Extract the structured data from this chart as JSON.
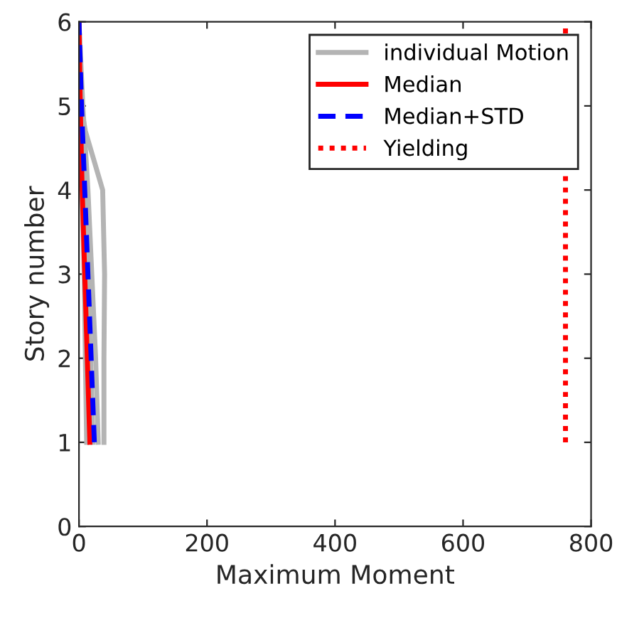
{
  "chart_data": {
    "type": "line",
    "xlabel": "Maximum Moment",
    "ylabel": "Story number",
    "xlim": [
      0,
      800
    ],
    "ylim": [
      0,
      6
    ],
    "xticks": [
      0,
      200,
      400,
      600,
      800
    ],
    "yticks": [
      0,
      1,
      2,
      3,
      4,
      5,
      6
    ],
    "legend": "top right",
    "grid": false,
    "series": [
      {
        "name": "individual Motion",
        "color": "#b4b4b4",
        "line_style": "solid",
        "x": [
          39,
          39,
          40,
          37,
          10,
          3,
          0
        ],
        "values": [
          1,
          2,
          3,
          4,
          4.7,
          5,
          6
        ]
      },
      {
        "color": "#b4b4b4",
        "line_style": "solid",
        "x": [
          30,
          26,
          20,
          14,
          6,
          0
        ],
        "values": [
          1,
          2,
          3,
          4,
          5,
          6
        ]
      },
      {
        "color": "#b4b4b4",
        "line_style": "solid",
        "x": [
          22,
          18,
          14,
          9,
          4,
          0
        ],
        "values": [
          1,
          2,
          3,
          4,
          5,
          6
        ]
      },
      {
        "color": "#b4b4b4",
        "line_style": "solid",
        "x": [
          12,
          10,
          8,
          5,
          2,
          0
        ],
        "values": [
          1,
          2,
          3,
          4,
          5,
          6
        ]
      },
      {
        "name": "Median",
        "color": "#ff0000",
        "line_style": "solid",
        "x": [
          17,
          13,
          9,
          5,
          2,
          0
        ],
        "values": [
          1,
          2,
          3,
          4,
          5,
          6
        ]
      },
      {
        "name": "Median+STD",
        "color": "#0000ff",
        "line_style": "dashed",
        "x": [
          24,
          19,
          14,
          9,
          4,
          0
        ],
        "values": [
          1,
          2,
          3,
          4,
          5,
          6
        ]
      },
      {
        "name": "Yielding",
        "color": "#ff0000",
        "line_style": "dotted",
        "x": [
          760,
          760
        ],
        "values": [
          1,
          6
        ]
      }
    ]
  }
}
